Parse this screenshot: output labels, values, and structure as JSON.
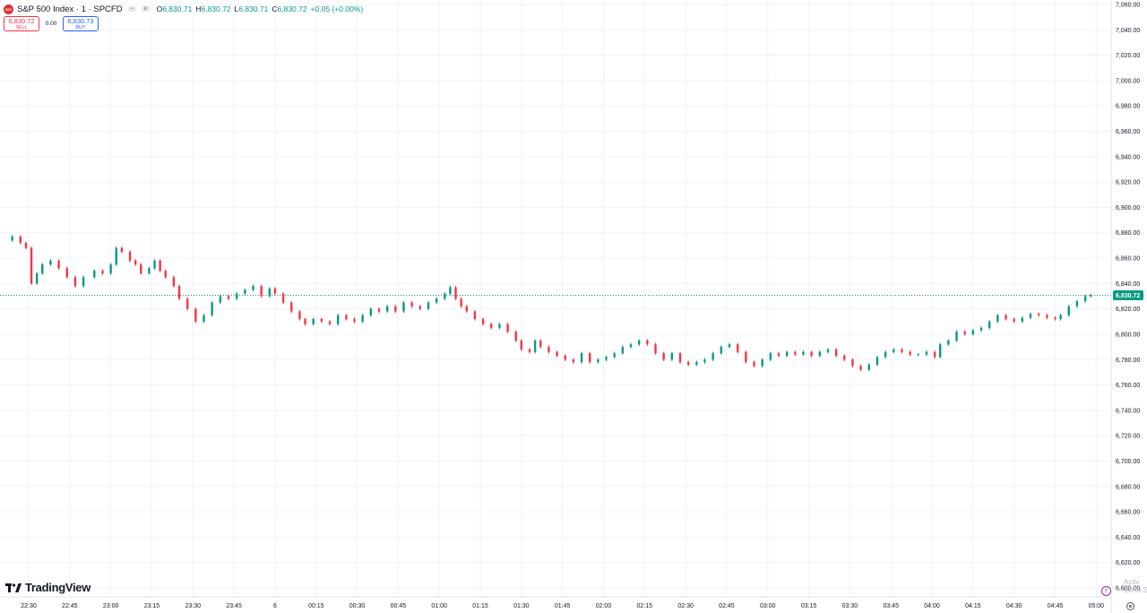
{
  "symbol": {
    "badge_text": "500",
    "title": "S&P 500 Index · 1 · SPCFD",
    "ohlc": {
      "o_label": "O",
      "o_value": "6,830.71",
      "h_label": "H",
      "h_value": "6,830.72",
      "l_label": "L",
      "l_value": "6,830.71",
      "c_label": "C",
      "c_value": "6,830.72",
      "change": "+0.05 (+0.00%)"
    }
  },
  "trade": {
    "sell_price": "6,830.72",
    "sell_label": "SELL",
    "spread": "0.00",
    "buy_price": "6,830.73",
    "buy_label": "BUY"
  },
  "branding": {
    "logo_text": "TradingView"
  },
  "watermark": {
    "line1": "Activ",
    "line2": "Go to S"
  },
  "colors": {
    "up": "#089981",
    "down": "#f23645",
    "grid": "#f0f3fa",
    "price_line": "#089981"
  },
  "chart_data": {
    "type": "candlestick",
    "ylim": [
      6600,
      7060
    ],
    "y_ticks": [
      "7,060.00",
      "7,040.00",
      "7,020.00",
      "7,000.00",
      "6,980.00",
      "6,960.00",
      "6,940.00",
      "6,920.00",
      "6,900.00",
      "6,880.00",
      "6,860.00",
      "6,840.00",
      "6,820.00",
      "6,800.00",
      "6,780.00",
      "6,760.00",
      "6,740.00",
      "6,720.00",
      "6,700.00",
      "6,680.00",
      "6,660.00",
      "6,640.00",
      "6,620.00",
      "6,600.00"
    ],
    "x_ticks": [
      "22:30",
      "22:45",
      "23:00",
      "23:15",
      "23:30",
      "23:45",
      "6",
      "00:15",
      "00:30",
      "00:45",
      "01:00",
      "01:15",
      "01:30",
      "01:45",
      "02:00",
      "02:15",
      "02:30",
      "02:45",
      "03:00",
      "03:15",
      "03:30",
      "03:45",
      "04:00",
      "04:15",
      "04:30",
      "04:45",
      "05:00"
    ],
    "last_price": "6,830.72",
    "last_value": 6830.72,
    "price_path": [
      [
        "22:21",
        6874
      ],
      [
        "22:24",
        6877
      ],
      [
        "22:27",
        6872
      ],
      [
        "22:29",
        6868
      ],
      [
        "22:31",
        6840
      ],
      [
        "22:33",
        6848
      ],
      [
        "22:35",
        6855
      ],
      [
        "22:38",
        6858
      ],
      [
        "22:41",
        6852
      ],
      [
        "22:44",
        6845
      ],
      [
        "22:47",
        6838
      ],
      [
        "22:50",
        6845
      ],
      [
        "22:54",
        6850
      ],
      [
        "22:57",
        6848
      ],
      [
        "23:00",
        6855
      ],
      [
        "23:02",
        6868
      ],
      [
        "23:04",
        6865
      ],
      [
        "23:07",
        6858
      ],
      [
        "23:09",
        6855
      ],
      [
        "23:11",
        6848
      ],
      [
        "23:14",
        6852
      ],
      [
        "23:16",
        6858
      ],
      [
        "23:18",
        6850
      ],
      [
        "23:20",
        6845
      ],
      [
        "23:23",
        6838
      ],
      [
        "23:25",
        6828
      ],
      [
        "23:28",
        6820
      ],
      [
        "23:31",
        6810
      ],
      [
        "23:34",
        6815
      ],
      [
        "23:37",
        6825
      ],
      [
        "23:40",
        6830
      ],
      [
        "23:43",
        6828
      ],
      [
        "23:46",
        6832
      ],
      [
        "23:49",
        6835
      ],
      [
        "23:52",
        6838
      ],
      [
        "23:55",
        6830
      ],
      [
        "23:58",
        6836
      ],
      [
        "00:00",
        6832
      ],
      [
        "00:03",
        6825
      ],
      [
        "00:06",
        6818
      ],
      [
        "00:09",
        6812
      ],
      [
        "00:11",
        6808
      ],
      [
        "00:14",
        6812
      ],
      [
        "00:17",
        6810
      ],
      [
        "00:20",
        6808
      ],
      [
        "00:23",
        6815
      ],
      [
        "00:26",
        6812
      ],
      [
        "00:29",
        6810
      ],
      [
        "00:32",
        6815
      ],
      [
        "00:35",
        6820
      ],
      [
        "00:38",
        6818
      ],
      [
        "00:41",
        6822
      ],
      [
        "00:44",
        6818
      ],
      [
        "00:47",
        6825
      ],
      [
        "00:50",
        6822
      ],
      [
        "00:53",
        6820
      ],
      [
        "00:56",
        6825
      ],
      [
        "00:59",
        6828
      ],
      [
        "01:02",
        6832
      ],
      [
        "01:04",
        6837
      ],
      [
        "01:06",
        6828
      ],
      [
        "01:08",
        6822
      ],
      [
        "01:10",
        6818
      ],
      [
        "01:13",
        6812
      ],
      [
        "01:16",
        6808
      ],
      [
        "01:19",
        6805
      ],
      [
        "01:22",
        6808
      ],
      [
        "01:25",
        6802
      ],
      [
        "01:28",
        6795
      ],
      [
        "01:30",
        6788
      ],
      [
        "01:33",
        6786
      ],
      [
        "01:35",
        6795
      ],
      [
        "01:37",
        6790
      ],
      [
        "01:40",
        6786
      ],
      [
        "01:43",
        6783
      ],
      [
        "01:46",
        6780
      ],
      [
        "01:49",
        6778
      ],
      [
        "01:52",
        6785
      ],
      [
        "01:55",
        6778
      ],
      [
        "01:58",
        6780
      ],
      [
        "02:01",
        6782
      ],
      [
        "02:04",
        6785
      ],
      [
        "02:07",
        6790
      ],
      [
        "02:10",
        6792
      ],
      [
        "02:13",
        6795
      ],
      [
        "02:16",
        6792
      ],
      [
        "02:19",
        6785
      ],
      [
        "02:22",
        6780
      ],
      [
        "02:25",
        6785
      ],
      [
        "02:28",
        6778
      ],
      [
        "02:31",
        6776
      ],
      [
        "02:34",
        6778
      ],
      [
        "02:37",
        6780
      ],
      [
        "02:40",
        6785
      ],
      [
        "02:43",
        6790
      ],
      [
        "02:46",
        6792
      ],
      [
        "02:49",
        6786
      ],
      [
        "02:52",
        6778
      ],
      [
        "02:55",
        6775
      ],
      [
        "02:58",
        6780
      ],
      [
        "03:01",
        6785
      ],
      [
        "03:04",
        6783
      ],
      [
        "03:07",
        6786
      ],
      [
        "03:10",
        6784
      ],
      [
        "03:13",
        6786
      ],
      [
        "03:16",
        6783
      ],
      [
        "03:19",
        6786
      ],
      [
        "03:22",
        6788
      ],
      [
        "03:25",
        6783
      ],
      [
        "03:28",
        6780
      ],
      [
        "03:31",
        6775
      ],
      [
        "03:34",
        6772
      ],
      [
        "03:37",
        6776
      ],
      [
        "03:40",
        6782
      ],
      [
        "03:43",
        6786
      ],
      [
        "03:46",
        6788
      ],
      [
        "03:49",
        6786
      ],
      [
        "03:52",
        6784
      ],
      [
        "03:55",
        6784
      ],
      [
        "03:58",
        6786
      ],
      [
        "04:01",
        6782
      ],
      [
        "04:03",
        6792
      ],
      [
        "04:06",
        6795
      ],
      [
        "04:09",
        6802
      ],
      [
        "04:12",
        6800
      ],
      [
        "04:15",
        6803
      ],
      [
        "04:18",
        6805
      ],
      [
        "04:21",
        6810
      ],
      [
        "04:24",
        6815
      ],
      [
        "04:27",
        6812
      ],
      [
        "04:30",
        6810
      ],
      [
        "04:33",
        6813
      ],
      [
        "04:36",
        6816
      ],
      [
        "04:39",
        6815
      ],
      [
        "04:42",
        6813
      ],
      [
        "04:45",
        6812
      ],
      [
        "04:47",
        6815
      ],
      [
        "04:50",
        6822
      ],
      [
        "04:53",
        6826
      ],
      [
        "04:56",
        6830
      ],
      [
        "04:58",
        6830.72
      ]
    ],
    "xlabel": "",
    "ylabel": "",
    "grid": true
  }
}
